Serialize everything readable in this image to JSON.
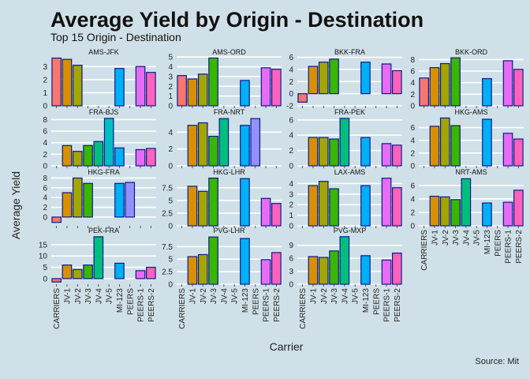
{
  "chart_data": {
    "type": "bar",
    "title": "Average Yield by Origin - Destination",
    "subtitle": "Top 15 Origin - Destination",
    "xlabel": "Carrier",
    "ylabel": "Average Yield",
    "caption": "Source: Mit",
    "categories": [
      "CARRIERS",
      "JV-1",
      "JV-2",
      "JV-3",
      "JV-4",
      "JV-5",
      "MI-123",
      "PEERS",
      "PEERS-1",
      "PEERS-2"
    ],
    "category_colors": [
      "#F8766D",
      "#D89000",
      "#A3A500",
      "#39B600",
      "#00BF7D",
      "#00BFC4",
      "#00B0F6",
      "#9590FF",
      "#E76BF3",
      "#FF62BC"
    ],
    "bar_border_color": "#0a1a8c",
    "grid": true,
    "facets": [
      {
        "name": "AMS-JFK",
        "values": [
          3.65,
          3.55,
          3.1,
          null,
          null,
          null,
          2.85,
          null,
          3.0,
          2.55
        ],
        "ylim": [
          0,
          3.8
        ],
        "yticks": [
          0,
          1,
          2,
          3
        ]
      },
      {
        "name": "AMS-ORD",
        "values": [
          3.1,
          2.75,
          3.25,
          4.9,
          null,
          null,
          2.6,
          null,
          3.9,
          3.75
        ],
        "ylim": [
          0,
          5.1
        ],
        "yticks": [
          0,
          1,
          2,
          3,
          4,
          5
        ]
      },
      {
        "name": "BKK-FRA",
        "values": [
          -1.4,
          4.5,
          5.2,
          5.7,
          null,
          null,
          5.2,
          null,
          4.9,
          3.8
        ],
        "ylim": [
          -2,
          6.2
        ],
        "yticks": [
          -2,
          0,
          2,
          4,
          6
        ]
      },
      {
        "name": "BKK-ORD",
        "values": [
          4.8,
          6.6,
          7.3,
          8.3,
          null,
          null,
          4.7,
          null,
          7.8,
          6.3
        ],
        "ylim": [
          0,
          8.6
        ],
        "yticks": [
          0,
          2,
          4,
          6,
          8
        ]
      },
      {
        "name": "FRA-BJS",
        "values": [
          null,
          3.5,
          2.5,
          3.5,
          4.2,
          8.2,
          3.1,
          null,
          2.8,
          3.0
        ],
        "ylim": [
          0,
          8.6
        ],
        "yticks": [
          0,
          2,
          4,
          6,
          8
        ]
      },
      {
        "name": "FRA-NRT",
        "values": [
          null,
          4.8,
          5.1,
          3.5,
          5.6,
          null,
          4.8,
          5.6,
          null,
          null
        ],
        "ylim": [
          0,
          5.9
        ],
        "yticks": [
          0,
          2,
          4
        ]
      },
      {
        "name": "FRA-PEK",
        "values": [
          null,
          3.7,
          3.7,
          3.5,
          6.2,
          null,
          3.7,
          null,
          2.9,
          2.7
        ],
        "ylim": [
          0,
          6.5
        ],
        "yticks": [
          0,
          2,
          4,
          6
        ]
      },
      {
        "name": "HKG-AMS",
        "values": [
          null,
          6.2,
          7.5,
          6.3,
          null,
          null,
          7.3,
          null,
          5.1,
          4.2
        ],
        "ylim": [
          0,
          7.8
        ],
        "yticks": [
          0,
          2,
          4,
          6
        ]
      },
      {
        "name": "HKG-FRA",
        "values": [
          -1.1,
          5.0,
          8.0,
          6.9,
          null,
          null,
          6.9,
          7.1,
          null,
          null
        ],
        "ylim": [
          -1.8,
          8.4
        ],
        "yticks": [
          0,
          2,
          4,
          6,
          8
        ]
      },
      {
        "name": "HKG-LHR",
        "values": [
          null,
          7.8,
          6.8,
          9.4,
          null,
          null,
          9.3,
          null,
          5.4,
          4.4
        ],
        "ylim": [
          0,
          9.8
        ],
        "yticks": [
          0.0,
          2.5,
          5.0,
          7.5
        ]
      },
      {
        "name": "LAX-AMS",
        "values": [
          null,
          3.8,
          4.2,
          3.5,
          null,
          null,
          3.8,
          null,
          4.5,
          3.6
        ],
        "ylim": [
          0,
          4.7
        ],
        "yticks": [
          0,
          1,
          2,
          3,
          4
        ]
      },
      {
        "name": "NRT-AMS",
        "values": [
          null,
          4.4,
          4.3,
          3.9,
          7.0,
          null,
          3.4,
          null,
          3.5,
          5.3
        ],
        "ylim": [
          0,
          7.4
        ],
        "yticks": [
          0,
          2,
          4,
          6
        ]
      },
      {
        "name": "PEK-FRA",
        "values": [
          -1.5,
          6.0,
          4.0,
          6.0,
          18.5,
          null,
          6.8,
          null,
          3.5,
          5.0
        ],
        "ylim": [
          -2.5,
          19.5
        ],
        "yticks": [
          0,
          5,
          10,
          15
        ]
      },
      {
        "name": "PVG-LHR",
        "values": [
          null,
          5.5,
          5.9,
          9.4,
          null,
          null,
          9.1,
          null,
          4.9,
          6.3
        ],
        "ylim": [
          0,
          9.9
        ],
        "yticks": [
          0.0,
          2.5,
          5.0,
          7.5
        ]
      },
      {
        "name": "PVG-MXP",
        "values": [
          null,
          6.4,
          6.2,
          7.7,
          11.0,
          null,
          6.6,
          null,
          5.6,
          7.2
        ],
        "ylim": [
          0,
          11.5
        ],
        "yticks": [
          0,
          3,
          6,
          9
        ]
      }
    ]
  }
}
